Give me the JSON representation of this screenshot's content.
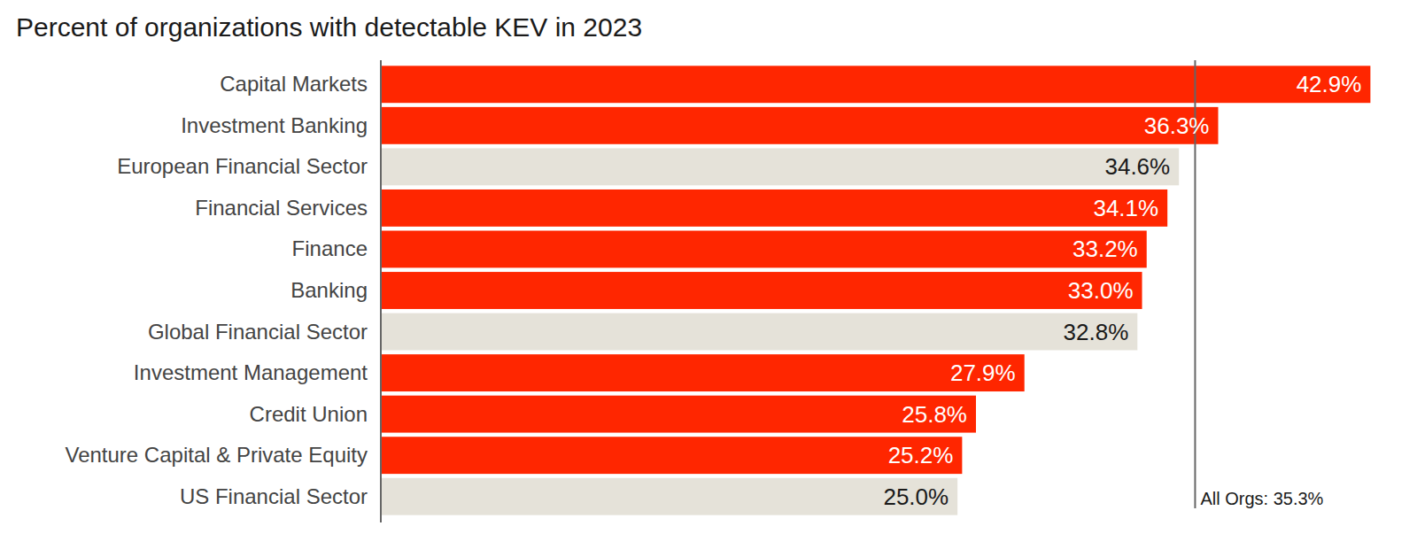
{
  "chart_data": {
    "type": "bar",
    "orientation": "horizontal",
    "title": "Percent of organizations with detectable KEV in 2023",
    "categories": [
      "Capital Markets",
      "Investment Banking",
      "European Financial Sector",
      "Financial Services",
      "Finance",
      "Banking",
      "Global Financial Sector",
      "Investment Management",
      "Credit Union",
      "Venture Capital & Private Equity",
      "US Financial Sector"
    ],
    "values": [
      42.9,
      36.3,
      34.6,
      34.1,
      33.2,
      33.0,
      32.8,
      27.9,
      25.8,
      25.2,
      25.0
    ],
    "value_labels": [
      "42.9%",
      "36.3%",
      "34.6%",
      "34.1%",
      "33.2%",
      "33.0%",
      "32.8%",
      "27.9%",
      "25.8%",
      "25.2%",
      "25.0%"
    ],
    "colors": [
      "#ff2600",
      "#ff2600",
      "#e5e2d9",
      "#ff2600",
      "#ff2600",
      "#ff2600",
      "#e5e2d9",
      "#ff2600",
      "#ff2600",
      "#ff2600",
      "#e5e2d9"
    ],
    "xlim": [
      0,
      43
    ],
    "data_labels": true,
    "tick_labels": "y",
    "grid": false,
    "annotations": [
      {
        "value": 35.3,
        "label": "All Orgs: 35.3%"
      }
    ]
  }
}
